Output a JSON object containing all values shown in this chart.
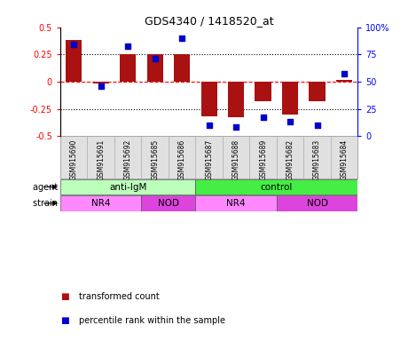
{
  "title": "GDS4340 / 1418520_at",
  "samples": [
    "GSM915690",
    "GSM915691",
    "GSM915692",
    "GSM915685",
    "GSM915686",
    "GSM915687",
    "GSM915688",
    "GSM915689",
    "GSM915682",
    "GSM915683",
    "GSM915684"
  ],
  "bar_values": [
    0.38,
    -0.02,
    0.25,
    0.25,
    0.25,
    -0.32,
    -0.33,
    -0.18,
    -0.3,
    -0.18,
    0.02
  ],
  "scatter_values": [
    84,
    46,
    83,
    71,
    90,
    10,
    8,
    17,
    13,
    10,
    57
  ],
  "bar_color": "#aa1111",
  "scatter_color": "#0000cc",
  "ylim_left": [
    -0.5,
    0.5
  ],
  "ylim_right": [
    0,
    100
  ],
  "yticks_left": [
    -0.5,
    -0.25,
    0,
    0.25,
    0.5
  ],
  "yticks_right": [
    0,
    25,
    50,
    75,
    100
  ],
  "ytick_labels_right": [
    "0",
    "25",
    "50",
    "75",
    "100%"
  ],
  "hlines": [
    0.25,
    0.0,
    -0.25
  ],
  "hline_styles": [
    "dotted",
    "dashed",
    "dotted"
  ],
  "hline_colors": [
    "black",
    "red",
    "black"
  ],
  "agent_groups": [
    {
      "label": "anti-IgM",
      "start": 0,
      "end": 5,
      "color": "#bbffbb"
    },
    {
      "label": "control",
      "start": 5,
      "end": 11,
      "color": "#44ee44"
    }
  ],
  "strain_groups": [
    {
      "label": "NR4",
      "start": 0,
      "end": 3,
      "color": "#ff88ff"
    },
    {
      "label": "NOD",
      "start": 3,
      "end": 5,
      "color": "#dd44dd"
    },
    {
      "label": "NR4",
      "start": 5,
      "end": 8,
      "color": "#ff88ff"
    },
    {
      "label": "NOD",
      "start": 8,
      "end": 11,
      "color": "#dd44dd"
    }
  ],
  "legend_items": [
    {
      "label": "transformed count",
      "color": "#aa1111"
    },
    {
      "label": "percentile rank within the sample",
      "color": "#0000cc"
    }
  ],
  "agent_label": "agent",
  "strain_label": "strain",
  "bar_width": 0.6
}
